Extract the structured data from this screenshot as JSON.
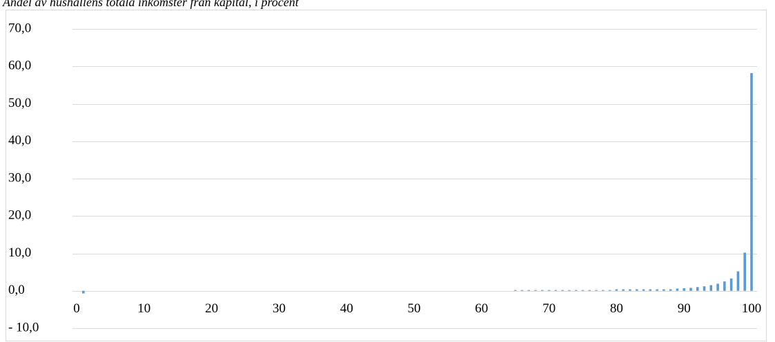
{
  "chart_data": {
    "type": "bar",
    "title": "Andel av hushållens totala inkomster från kapital, i procent",
    "x": [
      1,
      2,
      3,
      4,
      5,
      6,
      7,
      8,
      9,
      10,
      11,
      12,
      13,
      14,
      15,
      16,
      17,
      18,
      19,
      20,
      21,
      22,
      23,
      24,
      25,
      26,
      27,
      28,
      29,
      30,
      31,
      32,
      33,
      34,
      35,
      36,
      37,
      38,
      39,
      40,
      41,
      42,
      43,
      44,
      45,
      46,
      47,
      48,
      49,
      50,
      51,
      52,
      53,
      54,
      55,
      56,
      57,
      58,
      59,
      60,
      61,
      62,
      63,
      64,
      65,
      66,
      67,
      68,
      69,
      70,
      71,
      72,
      73,
      74,
      75,
      76,
      77,
      78,
      79,
      80,
      81,
      82,
      83,
      84,
      85,
      86,
      87,
      88,
      89,
      90,
      91,
      92,
      93,
      94,
      95,
      96,
      97,
      98,
      99,
      100
    ],
    "values": [
      -0.7,
      0,
      0,
      0,
      0,
      0,
      0,
      0,
      0,
      0,
      0,
      0,
      0,
      0,
      0,
      0,
      0,
      0,
      0,
      0,
      0,
      0,
      0,
      0,
      0,
      0,
      0,
      0,
      0,
      0,
      0,
      0,
      0,
      0,
      0,
      0,
      0,
      0,
      0,
      0,
      0,
      0,
      0,
      0,
      0,
      0,
      0,
      0,
      0,
      0,
      0,
      0,
      0,
      0,
      0,
      0,
      0,
      0,
      0,
      0,
      0,
      0,
      0,
      0,
      0.2,
      0.2,
      0.2,
      0.2,
      0.2,
      0.2,
      0.2,
      0.2,
      0.2,
      0.2,
      0.2,
      0.2,
      0.2,
      0.2,
      0.2,
      0.4,
      0.4,
      0.4,
      0.4,
      0.4,
      0.4,
      0.4,
      0.4,
      0.4,
      0.6,
      0.7,
      0.8,
      1.0,
      1.2,
      1.5,
      1.9,
      2.5,
      3.3,
      5.2,
      10.2,
      58.2
    ],
    "color": "#5b9bd5",
    "xlim": [
      0,
      100
    ],
    "xticks": [
      0,
      10,
      20,
      30,
      40,
      50,
      60,
      70,
      80,
      90,
      100
    ],
    "ylim": [
      -10,
      70
    ],
    "yticks": [
      {
        "value": -10,
        "label": "- 10,0"
      },
      {
        "value": 0,
        "label": "0,0"
      },
      {
        "value": 10,
        "label": "10,0"
      },
      {
        "value": 20,
        "label": "20,0"
      },
      {
        "value": 30,
        "label": "30,0"
      },
      {
        "value": 40,
        "label": "40,0"
      },
      {
        "value": 50,
        "label": "50,0"
      },
      {
        "value": 60,
        "label": "60,0"
      },
      {
        "value": 70,
        "label": "70,0"
      }
    ],
    "grid": true
  }
}
